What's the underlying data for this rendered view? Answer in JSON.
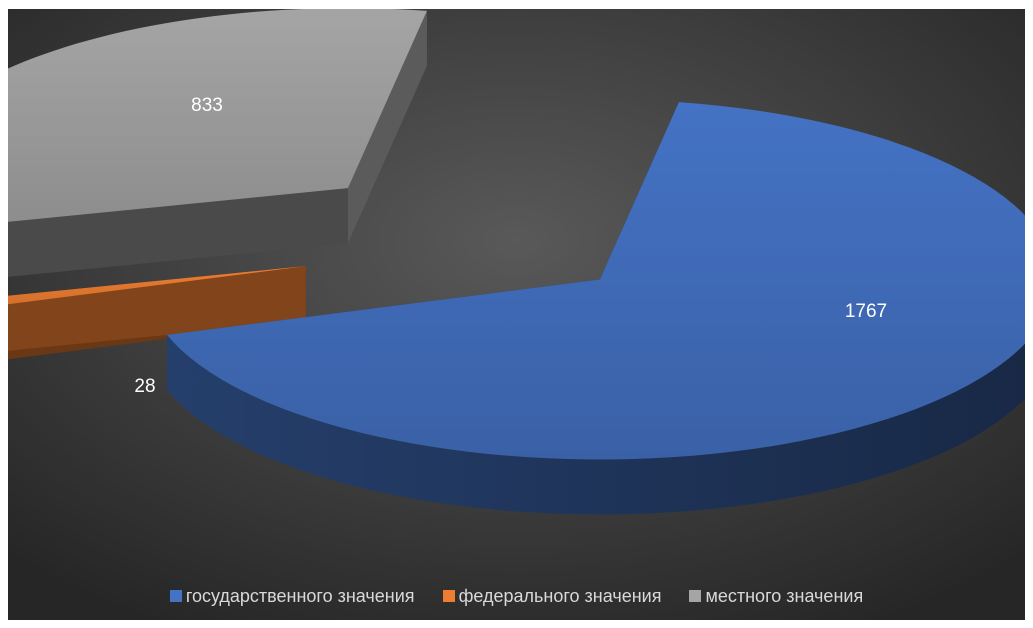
{
  "chart_data": {
    "type": "pie",
    "style": "3d-exploded",
    "categories": [
      "государственного значения",
      "федерального значения",
      "местного значения"
    ],
    "values": [
      1767,
      28,
      833
    ],
    "data_labels": [
      "1767",
      "28",
      "833"
    ],
    "colors": [
      "#4472C4",
      "#ED7D31",
      "#A5A5A5"
    ],
    "legend_position": "bottom",
    "background": "#404040"
  }
}
